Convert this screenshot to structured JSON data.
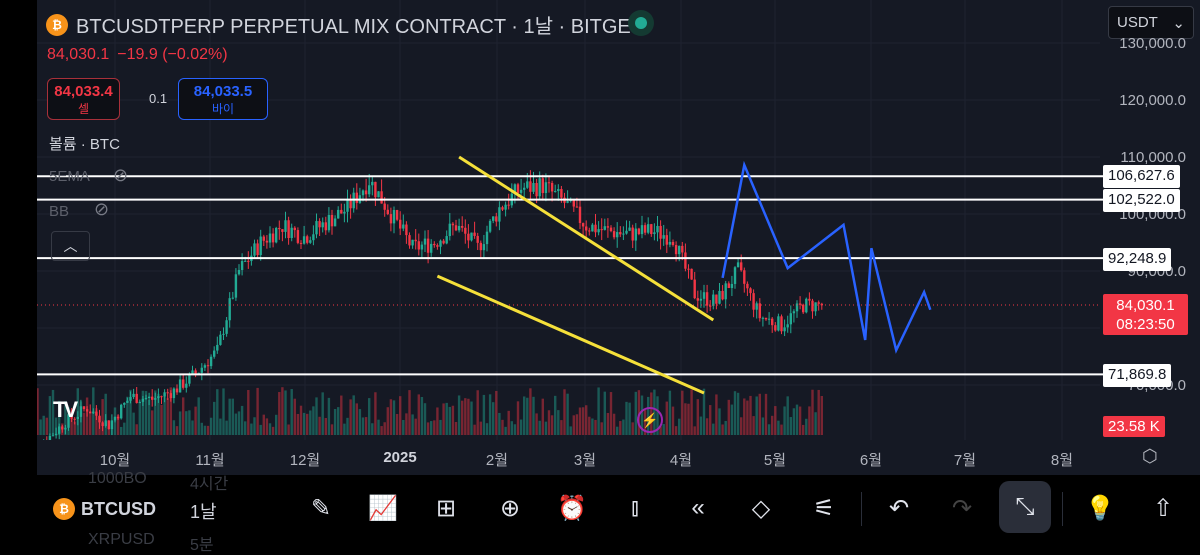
{
  "header": {
    "symbol_title": "BTCUSDTPERP PERPETUAL MIX CONTRACT · 1날 · BITGET",
    "last_price": "84,030.1",
    "change": "−19.9 (−0.02%)"
  },
  "trade": {
    "sell_price": "84,033.4",
    "sell_label": "셀",
    "spread": "0.1",
    "buy_price": "84,033.5",
    "buy_label": "바이"
  },
  "indicators": {
    "volume": "볼륨 · BTC",
    "ema": "5EMA",
    "bb": "BB"
  },
  "currency_select": "USDT",
  "price_axis": {
    "labels": [
      "130,000.0",
      "120,000.0",
      "110,000.0",
      "100,000.0",
      "90,000.0",
      "70,000.0"
    ]
  },
  "horizontal_lines": [
    {
      "price": 106627.6,
      "label": "106,627.6"
    },
    {
      "price": 102522.0,
      "label": "102,522.0"
    },
    {
      "price": 92248.9,
      "label": "92,248.9"
    },
    {
      "price": 71869.8,
      "label": "71,869.8"
    }
  ],
  "current": {
    "price": 84030.1,
    "label": "84,030.1",
    "countdown": "08:23:50"
  },
  "volume_tag": "23.58 K",
  "time_axis": [
    "10월",
    "11월",
    "12월",
    "2025",
    "2월",
    "3월",
    "4월",
    "5월",
    "6월",
    "7월",
    "8월"
  ],
  "colors": {
    "up": "#22ab94",
    "down": "#f23645",
    "trendline": "#f5e03a",
    "projection": "#2962ff",
    "background": "#151924"
  },
  "chart_data": {
    "type": "candlestick",
    "start_date": "2024-09-01",
    "weekly_close": [
      58000,
      60000,
      63500,
      66000,
      63000,
      68000,
      67500,
      69000,
      72000,
      76000,
      90000,
      95000,
      98000,
      96000,
      98500,
      101000,
      106000,
      100000,
      94000,
      95000,
      98000,
      94000,
      101000,
      104500,
      105000,
      102000,
      98000,
      97000,
      96500,
      97000,
      96000,
      86000,
      84500,
      90000,
      82000,
      80500,
      84000,
      84030
    ],
    "trendlines": [
      {
        "from": {
          "date": "2025-01-20",
          "price": 110000
        },
        "to": {
          "date": "2025-04-12",
          "price": 81400
        }
      },
      {
        "from": {
          "date": "2025-01-13",
          "price": 89100
        },
        "to": {
          "date": "2025-04-09",
          "price": 68600
        }
      }
    ],
    "projection": [
      {
        "date": "2025-04-15",
        "price": 88800
      },
      {
        "date": "2025-04-22",
        "price": 108600
      },
      {
        "date": "2025-05-06",
        "price": 90500
      },
      {
        "date": "2025-05-24",
        "price": 98100
      },
      {
        "date": "2025-05-31",
        "price": 77900
      },
      {
        "date": "2025-06-02",
        "price": 94000
      },
      {
        "date": "2025-06-10",
        "price": 76100
      },
      {
        "date": "2025-06-19",
        "price": 86300
      },
      {
        "date": "2025-06-21",
        "price": 83200
      }
    ]
  },
  "bottom_bar": {
    "symbol": "BTCUSD",
    "timeframe": "1날",
    "ghost_symbol_above": "1000BO",
    "ghost_tf_above": "4시간",
    "ghost_symbol_below": "XRPUSD",
    "ghost_tf_below": "5분"
  }
}
